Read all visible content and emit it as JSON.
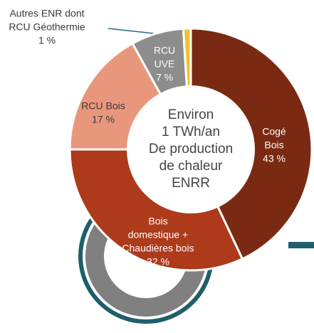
{
  "chart_data": {
    "type": "donut",
    "categories": [
      [
        "Cogé",
        "Bois"
      ],
      [
        "Bois",
        "domestique +",
        "Chaudières bois"
      ],
      [
        "RCU Bois"
      ],
      [
        "RCU",
        "UVE"
      ],
      [
        "Autres ENR dont",
        "RCU Géothermie"
      ]
    ],
    "values": [
      43,
      32,
      17,
      7,
      1
    ],
    "value_labels": [
      "43 %",
      "32 %",
      "17 %",
      "7 %",
      "1 %"
    ],
    "colors": [
      "#7a2a12",
      "#ad3a1b",
      "#e9977c",
      "#8d8d8d",
      "#f2c12e"
    ],
    "center_text": [
      "Environ",
      "1 TWh/an",
      "De production",
      "de chaleur",
      "ENRR"
    ]
  }
}
